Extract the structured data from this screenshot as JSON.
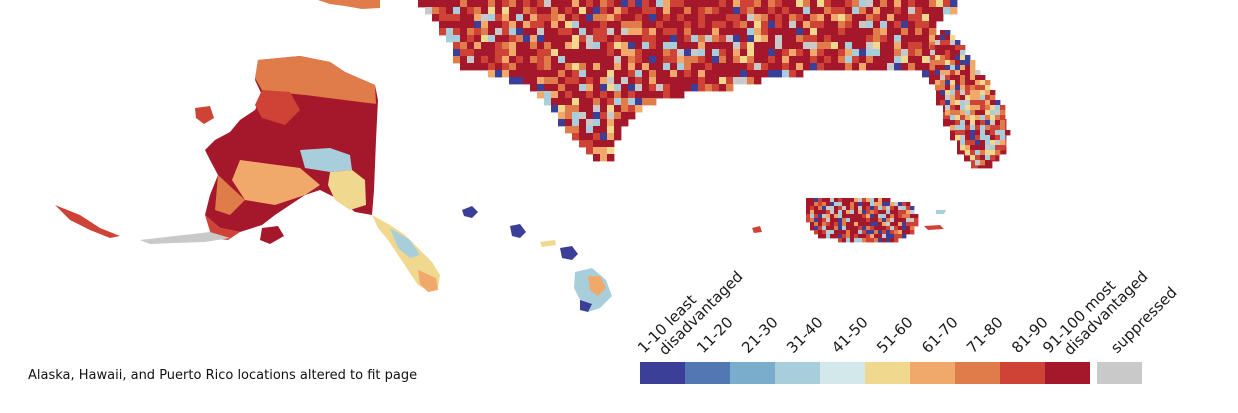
{
  "note": "Alaska, Hawaii, and Puerto Rico locations altered to fit page",
  "legend": {
    "items": [
      {
        "label": "1-10 least",
        "label2": "disadvantaged",
        "color": "#3b3f98"
      },
      {
        "label": "11-20",
        "color": "#5377b2"
      },
      {
        "label": "21-30",
        "color": "#7aaccb"
      },
      {
        "label": "31-40",
        "color": "#a8cedb"
      },
      {
        "label": "41-50",
        "color": "#d2e8ea"
      },
      {
        "label": "51-60",
        "color": "#f0d98f"
      },
      {
        "label": "61-70",
        "color": "#f0a96a"
      },
      {
        "label": "71-80",
        "color": "#e07b4a"
      },
      {
        "label": "81-90",
        "color": "#cf4336"
      },
      {
        "label": "91-100 most",
        "label2": "disadvantaged",
        "color": "#a5182b"
      }
    ],
    "suppressed": {
      "label": "suppressed",
      "color": "#c9c9c9"
    }
  },
  "map_colors": {
    "most": "#a5182b",
    "high": "#cf4336",
    "midhigh": "#e07b4a",
    "mid": "#f0a96a",
    "midlow": "#f0d98f",
    "low": "#a8cedb",
    "least": "#3b3f98",
    "suppressed": "#c9c9c9"
  }
}
